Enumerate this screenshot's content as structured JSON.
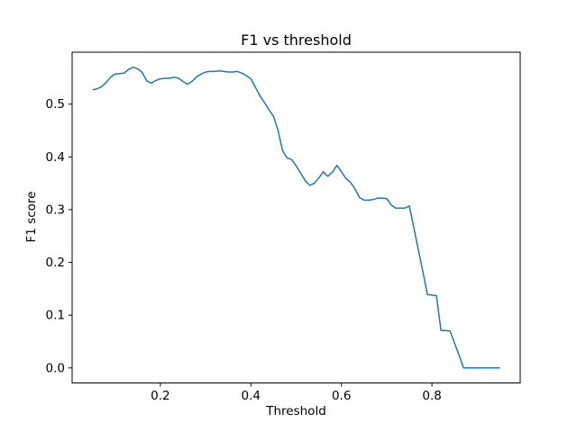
{
  "window": {
    "background": "#ffffff"
  },
  "chart_data": {
    "type": "line",
    "title": "F1 vs threshold",
    "xlabel": "Threshold",
    "ylabel": "F1 score",
    "xlim": [
      0.005,
      0.995
    ],
    "ylim": [
      -0.0285,
      0.5985
    ],
    "xticks": [
      0.2,
      0.4,
      0.6,
      0.8
    ],
    "yticks": [
      0.0,
      0.1,
      0.2,
      0.3,
      0.4,
      0.5
    ],
    "grid": false,
    "legend": "none",
    "axis_color": "#000000",
    "series": [
      {
        "name": "F1 score",
        "color": "#1f77b4",
        "x": [
          0.05,
          0.06,
          0.07,
          0.08,
          0.09,
          0.1,
          0.11,
          0.12,
          0.13,
          0.14,
          0.15,
          0.16,
          0.17,
          0.18,
          0.19,
          0.2,
          0.21,
          0.22,
          0.23,
          0.24,
          0.25,
          0.26,
          0.27,
          0.28,
          0.29,
          0.3,
          0.31,
          0.32,
          0.33,
          0.34,
          0.35,
          0.36,
          0.37,
          0.38,
          0.39,
          0.4,
          0.41,
          0.42,
          0.43,
          0.44,
          0.45,
          0.46,
          0.47,
          0.48,
          0.49,
          0.5,
          0.51,
          0.52,
          0.53,
          0.54,
          0.55,
          0.56,
          0.57,
          0.58,
          0.59,
          0.6,
          0.61,
          0.62,
          0.63,
          0.64,
          0.65,
          0.66,
          0.67,
          0.68,
          0.69,
          0.7,
          0.71,
          0.72,
          0.73,
          0.74,
          0.75,
          0.76,
          0.77,
          0.78,
          0.79,
          0.8,
          0.81,
          0.82,
          0.83,
          0.84,
          0.85,
          0.86,
          0.87,
          0.88,
          0.89,
          0.9,
          0.91,
          0.92,
          0.93,
          0.94,
          0.95
        ],
        "y": [
          0.527,
          0.529,
          0.533,
          0.541,
          0.551,
          0.557,
          0.558,
          0.559,
          0.566,
          0.57,
          0.567,
          0.56,
          0.544,
          0.54,
          0.545,
          0.548,
          0.549,
          0.549,
          0.551,
          0.549,
          0.543,
          0.538,
          0.543,
          0.552,
          0.557,
          0.561,
          0.562,
          0.562,
          0.563,
          0.562,
          0.561,
          0.561,
          0.562,
          0.559,
          0.554,
          0.548,
          0.532,
          0.516,
          0.503,
          0.489,
          0.477,
          0.45,
          0.412,
          0.398,
          0.395,
          0.383,
          0.369,
          0.355,
          0.346,
          0.35,
          0.36,
          0.372,
          0.363,
          0.371,
          0.384,
          0.372,
          0.359,
          0.352,
          0.339,
          0.323,
          0.318,
          0.318,
          0.319,
          0.322,
          0.322,
          0.321,
          0.309,
          0.303,
          0.303,
          0.303,
          0.307,
          0.266,
          0.224,
          0.182,
          0.139,
          0.138,
          0.137,
          0.071,
          0.071,
          0.07,
          0.047,
          0.024,
          0.0,
          0.0,
          0.0,
          0.0,
          0.0,
          0.0,
          0.0,
          0.0,
          0.0
        ]
      }
    ]
  }
}
